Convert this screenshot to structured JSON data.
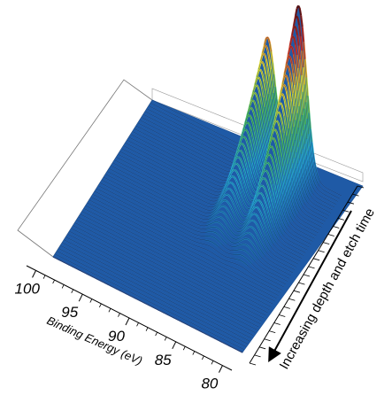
{
  "chart_data": {
    "type": "surface-3d",
    "title": "",
    "xlabel": "Binding Energy (eV)",
    "ylabel": "Increasing depth and etch time",
    "zlabel": "",
    "x_axis_reversed": true,
    "x_ticks": [
      100,
      95,
      90,
      85,
      80
    ],
    "x_range": [
      101,
      79
    ],
    "peaks": [
      {
        "position_ev": 87.6,
        "relative_height": 0.72
      },
      {
        "position_ev": 84.0,
        "relative_height": 1.0
      }
    ],
    "peaks_emerge_with_depth": true,
    "colormap": [
      "#1f5fa8",
      "#27a9d6",
      "#4cc06a",
      "#e8e23a",
      "#d9352b",
      "#5e0f10"
    ]
  }
}
